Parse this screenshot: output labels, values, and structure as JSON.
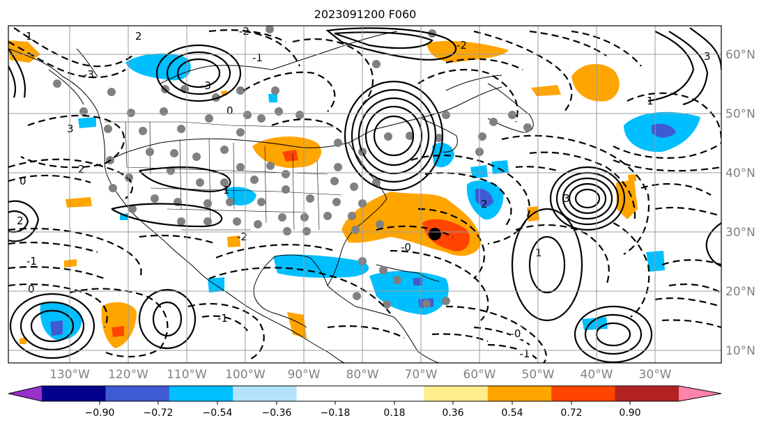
{
  "title": "2023091200 F060",
  "lon_ticks": [
    "130°W",
    "120°W",
    "110°W",
    "100°W",
    "90°W",
    "80°W",
    "70°W",
    "60°W",
    "50°W",
    "40°W",
    "30°W"
  ],
  "lat_ticks": [
    "60°N",
    "50°N",
    "40°N",
    "30°N",
    "20°N",
    "10°N"
  ],
  "colorbar": {
    "colors": [
      "#9932cc",
      "#00008b",
      "#3e5bd3",
      "#00bfff",
      "#b3e3fb",
      "#ffffff",
      "#ffffff",
      "#ffec8b",
      "#ffa500",
      "#ff4500",
      "#b22222",
      "#ff82ab"
    ],
    "tick_labels": [
      "−0.90",
      "−0.72",
      "−0.54",
      "−0.36",
      "−0.18",
      "0.18",
      "0.36",
      "0.54",
      "0.72",
      "0.90"
    ]
  },
  "contour_labels": {
    "lbl_m1a": "-1",
    "lbl_m1b": "-1",
    "lbl_m1c": "-1",
    "lbl_m1d": "-1",
    "lbl_m2a": "-2",
    "lbl_m2b": "-2",
    "lbl_m2c": "-2",
    "lbl_m3a": "-3",
    "lbl_m3b": "-3",
    "lbl_0a": "0",
    "lbl_0b": "0",
    "lbl_0c": "-0",
    "lbl_0d": "0",
    "lbl_0e": "-0",
    "lbl_1a": "1",
    "lbl_1b": "1",
    "lbl_1c": "1",
    "lbl_1d": "1",
    "lbl_2a": "2",
    "lbl_2b": "2",
    "lbl_2c": "2",
    "lbl_2d": "2",
    "lbl_3a": "3",
    "lbl_3b": "3",
    "lbl_3c": "3"
  },
  "colors": {
    "grid": "#9a9a9a",
    "positive_orange": "#ffa500",
    "positive_red": "#ff4500",
    "negative_cyan": "#00bfff",
    "negative_blue": "#3e5bd3",
    "station_dot": "#808080"
  }
}
